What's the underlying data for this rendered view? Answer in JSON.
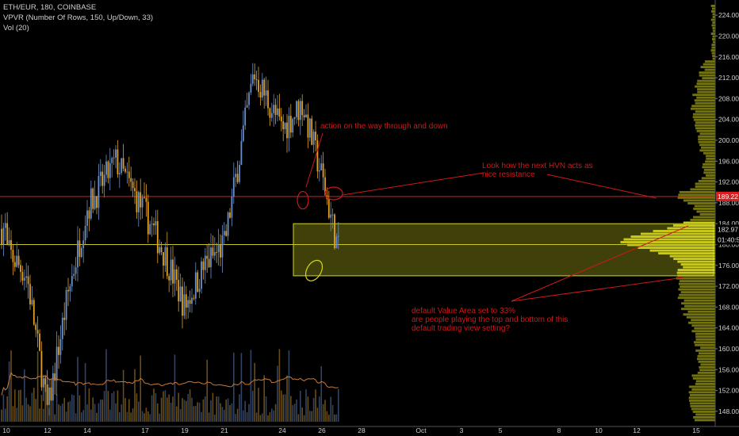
{
  "legend": {
    "symbol": "ETH/EUR, 180, COINBASE",
    "vpvr": "VPVR (Number Of Rows, 150, Up/Down, 33)",
    "vol": "Vol (20)"
  },
  "annotations": {
    "action": "action on the way through and down",
    "hvn": "Look how the next HVN acts as\nnice resistance",
    "value_area": "default Value Area set to 33%\nare people playing the top and bottom of this\ndefault trading view setting?"
  },
  "price_labels": {
    "resistance": "189.22",
    "current": "182.97",
    "countdown": "01:40:56"
  },
  "chart_data": {
    "type": "candlestick",
    "title": "ETH/EUR, 180, COINBASE",
    "ylim": [
      146,
      226
    ],
    "y_ticks": [
      148,
      152,
      156,
      160,
      164,
      168,
      172,
      176,
      180,
      184,
      188,
      192,
      196,
      200,
      204,
      208,
      212,
      216,
      220,
      224
    ],
    "x_ticks": [
      "10",
      "12",
      "14",
      "17",
      "19",
      "21",
      "24",
      "26",
      "28",
      "Oct",
      "3",
      "5",
      "8",
      "10",
      "12",
      "15"
    ],
    "price_path": [
      [
        "10",
        179
      ],
      [
        "11",
        174
      ],
      [
        "12",
        148
      ],
      [
        "13",
        170
      ],
      [
        "14",
        187
      ],
      [
        "15",
        196
      ],
      [
        "16",
        186
      ],
      [
        "17",
        178
      ],
      [
        "18",
        168
      ],
      [
        "19",
        176
      ],
      [
        "20",
        180
      ],
      [
        "21",
        213
      ],
      [
        "22",
        202
      ],
      [
        "23",
        207
      ],
      [
        "24",
        193
      ],
      [
        "25",
        176
      ],
      [
        "26",
        181
      ],
      [
        "27",
        189
      ],
      [
        "27",
        183
      ]
    ],
    "horizontal_lines": [
      {
        "price": 189.22,
        "color": "#d62020"
      },
      {
        "price": 180,
        "color": "#c8c82a"
      }
    ],
    "value_area_box": {
      "low": 174,
      "high": 184
    },
    "volume_ma_period": 20,
    "colors": {
      "up": "#6b8fc9",
      "down": "#e0a020",
      "profile": "#7f7f12",
      "value_area": "#d6d61a",
      "annotation": "#d01818"
    }
  }
}
